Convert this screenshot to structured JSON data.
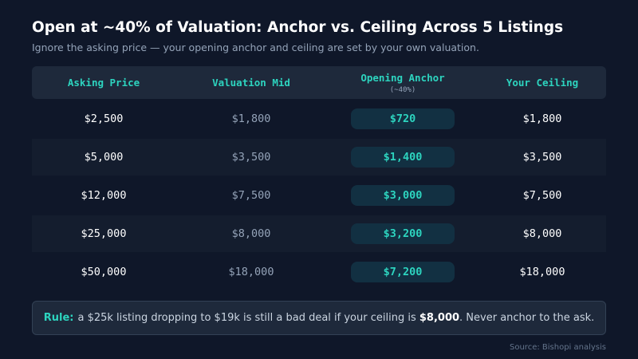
{
  "title": "Open at ~40% of Valuation: Anchor vs. Ceiling Across 5 Listings",
  "subtitle": "Ignore the asking price — your opening anchor and ceiling are set by your own valuation.",
  "colors": {
    "background": "#0f1729",
    "accent": "#2dd4bf",
    "muted": "#94a3b8",
    "header_bg": "#1e293b",
    "pill_bg": "#123042"
  },
  "chart_data": {
    "type": "table",
    "columns": [
      {
        "label": "Asking Price",
        "sublabel": ""
      },
      {
        "label": "Valuation Mid",
        "sublabel": ""
      },
      {
        "label": "Opening Anchor",
        "sublabel": "(~40%)"
      },
      {
        "label": "Your Ceiling",
        "sublabel": ""
      }
    ],
    "rows": [
      {
        "asking": "$2,500",
        "valuation_mid": "$1,800",
        "opening_anchor": "$720",
        "ceiling": "$1,800"
      },
      {
        "asking": "$5,000",
        "valuation_mid": "$3,500",
        "opening_anchor": "$1,400",
        "ceiling": "$3,500"
      },
      {
        "asking": "$12,000",
        "valuation_mid": "$7,500",
        "opening_anchor": "$3,000",
        "ceiling": "$7,500"
      },
      {
        "asking": "$25,000",
        "valuation_mid": "$8,000",
        "opening_anchor": "$3,200",
        "ceiling": "$8,000"
      },
      {
        "asking": "$50,000",
        "valuation_mid": "$18,000",
        "opening_anchor": "$7,200",
        "ceiling": "$18,000"
      }
    ]
  },
  "rule": {
    "label": "Rule:",
    "text_before": "a $25k listing dropping to $19k is still a bad deal if your ceiling is",
    "highlight": "$8,000",
    "text_after": ". Never anchor to the ask."
  },
  "source": "Source: Bishopi analysis"
}
